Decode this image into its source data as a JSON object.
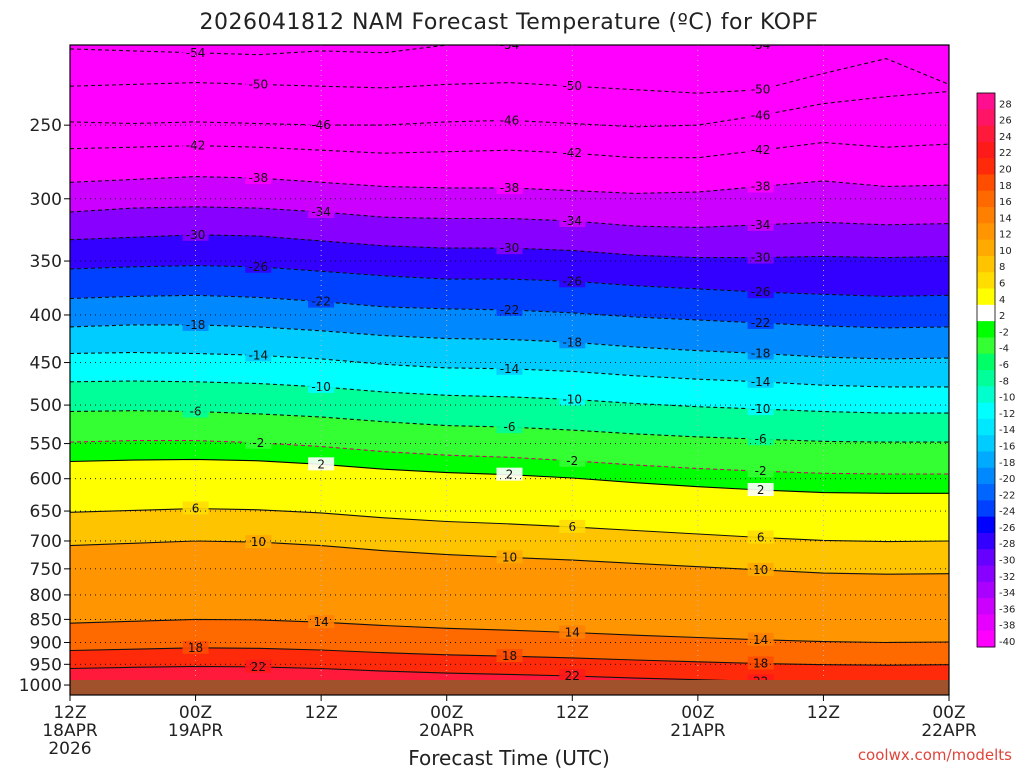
{
  "chart_data": {
    "type": "heatmap",
    "title": "2026041812 NAM Forecast Temperature (ºC) for KOPF",
    "xlabel": "Forecast Time (UTC)",
    "ylabel": "",
    "credit": "coolwx.com/modelts",
    "y_scale": "pressure-log",
    "ylim": [
      1025,
      205
    ],
    "xlim": [
      0,
      84
    ],
    "y_ticks": [
      250,
      300,
      350,
      400,
      450,
      500,
      550,
      600,
      650,
      700,
      750,
      800,
      850,
      900,
      950,
      1000
    ],
    "x_ticks": [
      {
        "hour": 0,
        "label": "12Z",
        "date": "18APR",
        "year": "2026"
      },
      {
        "hour": 12,
        "label": "00Z",
        "date": "19APR",
        "year": ""
      },
      {
        "hour": 24,
        "label": "12Z",
        "date": "",
        "year": ""
      },
      {
        "hour": 36,
        "label": "00Z",
        "date": "20APR",
        "year": ""
      },
      {
        "hour": 48,
        "label": "12Z",
        "date": "",
        "year": ""
      },
      {
        "hour": 60,
        "label": "00Z",
        "date": "21APR",
        "year": ""
      },
      {
        "hour": 72,
        "label": "12Z",
        "date": "",
        "year": ""
      },
      {
        "hour": 84,
        "label": "00Z",
        "date": "22APR",
        "year": ""
      }
    ],
    "colorbar": {
      "levels": [
        28,
        26,
        24,
        22,
        20,
        18,
        16,
        14,
        12,
        10,
        8,
        6,
        4,
        2,
        -2,
        -4,
        -6,
        -8,
        -10,
        -12,
        -14,
        -16,
        -18,
        -20,
        -22,
        -24,
        -26,
        -28,
        -30,
        -32,
        -34,
        -36,
        -38,
        -40
      ],
      "colors": [
        "#ff0f8f",
        "#ff1466",
        "#ff1a3c",
        "#ff1a1a",
        "#ff2a0a",
        "#ff4d00",
        "#ff6a00",
        "#ff8000",
        "#ff9500",
        "#ffaa00",
        "#ffc400",
        "#ffdd00",
        "#ffff00",
        "#ffffff",
        "#00ff00",
        "#33ff33",
        "#00ff66",
        "#00ff99",
        "#00ffcc",
        "#00ffff",
        "#00e8ff",
        "#00ccff",
        "#00aaff",
        "#0088ff",
        "#0066ff",
        "#0040ff",
        "#0000ff",
        "#3300ff",
        "#6600ff",
        "#8800ff",
        "#aa00ff",
        "#cc00ff",
        "#e600ff",
        "#ff00ff"
      ]
    },
    "contours": [
      {
        "value": -54,
        "p": [
          207,
          208,
          209,
          210,
          208,
          209,
          205,
          205,
          205,
          205,
          205,
          205,
          205,
          205,
          205
        ]
      },
      {
        "value": -50,
        "p": [
          227,
          226,
          225,
          226,
          227,
          228,
          226,
          225,
          227,
          229,
          231,
          229,
          220,
          212,
          226
        ]
      },
      {
        "value": -46,
        "p": [
          248,
          249,
          248,
          249,
          250,
          250,
          248,
          247,
          249,
          251,
          250,
          244,
          237,
          233,
          230
        ]
      },
      {
        "value": -42,
        "p": [
          265,
          264,
          263,
          264,
          266,
          268,
          267,
          266,
          268,
          271,
          271,
          266,
          261,
          264,
          262
        ]
      },
      {
        "value": -38,
        "p": [
          288,
          286,
          284,
          285,
          288,
          291,
          292,
          292,
          294,
          296,
          295,
          291,
          287,
          291,
          290
        ]
      },
      {
        "value": -34,
        "p": [
          310,
          307,
          306,
          307,
          310,
          314,
          315,
          315,
          317,
          321,
          322,
          320,
          318,
          320,
          319
        ]
      },
      {
        "value": -30,
        "p": [
          332,
          330,
          328,
          329,
          333,
          337,
          339,
          339,
          341,
          345,
          347,
          347,
          346,
          347,
          346
        ]
      },
      {
        "value": -26,
        "p": [
          357,
          355,
          354,
          355,
          359,
          363,
          366,
          366,
          368,
          372,
          375,
          378,
          380,
          382,
          381
        ]
      },
      {
        "value": -22,
        "p": [
          384,
          382,
          381,
          383,
          387,
          392,
          394,
          395,
          398,
          402,
          405,
          408,
          411,
          413,
          412
        ]
      },
      {
        "value": -18,
        "p": [
          412,
          410,
          410,
          412,
          416,
          421,
          424,
          425,
          428,
          433,
          437,
          440,
          444,
          446,
          445
        ]
      },
      {
        "value": -14,
        "p": [
          440,
          439,
          440,
          442,
          446,
          452,
          456,
          457,
          460,
          465,
          469,
          472,
          476,
          478,
          478
        ]
      },
      {
        "value": -10,
        "p": [
          472,
          471,
          472,
          474,
          478,
          484,
          488,
          490,
          493,
          498,
          502,
          505,
          508,
          510,
          510
        ]
      },
      {
        "value": -6,
        "p": [
          508,
          507,
          508,
          511,
          515,
          521,
          526,
          528,
          532,
          537,
          541,
          544,
          547,
          548,
          548
        ]
      },
      {
        "value": -2,
        "p": [
          548,
          546,
          546,
          549,
          554,
          561,
          566,
          569,
          574,
          580,
          585,
          589,
          592,
          593,
          593
        ]
      },
      {
        "value": 2,
        "p": [
          575,
          573,
          572,
          574,
          579,
          586,
          591,
          594,
          599,
          606,
          612,
          617,
          621,
          622,
          622
        ]
      },
      {
        "value": 6,
        "p": [
          652,
          649,
          646,
          648,
          653,
          661,
          667,
          671,
          676,
          682,
          688,
          694,
          699,
          701,
          700
        ]
      },
      {
        "value": 10,
        "p": [
          708,
          704,
          700,
          702,
          708,
          717,
          724,
          729,
          734,
          740,
          746,
          752,
          758,
          760,
          759
        ]
      },
      {
        "value": 14,
        "p": [
          858,
          854,
          850,
          851,
          856,
          863,
          869,
          873,
          878,
          884,
          889,
          894,
          898,
          900,
          899
        ]
      },
      {
        "value": 18,
        "p": [
          918,
          915,
          912,
          913,
          917,
          923,
          928,
          931,
          935,
          940,
          944,
          948,
          951,
          952,
          951
        ]
      },
      {
        "value": 22,
        "p": [
          960,
          957,
          955,
          956,
          960,
          966,
          971,
          974,
          978,
          983,
          987,
          991,
          995,
          997,
          996
        ]
      }
    ]
  }
}
